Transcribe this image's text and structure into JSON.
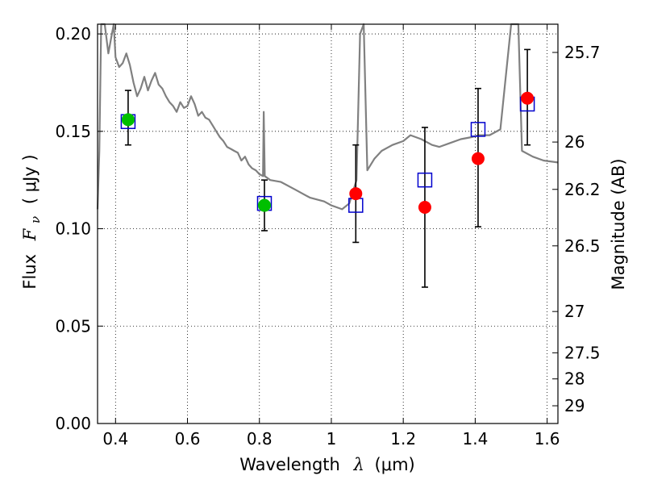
{
  "chart_data": {
    "type": "scatter",
    "xlabel": {
      "text": "Wavelength",
      "symbol": "λ",
      "unit": "(μm)"
    },
    "ylabel": {
      "text": "Flux",
      "symbol": "F",
      "subscript": "ν",
      "unit": "( μJy )"
    },
    "y2label": "Magnitude (AB)",
    "xlim": [
      0.35,
      1.63
    ],
    "ylim": [
      0.0,
      0.205
    ],
    "xticks": [
      0.4,
      0.6,
      0.8,
      1.0,
      1.2,
      1.4,
      1.6
    ],
    "xtick_labels": [
      "0.4",
      "0.6",
      "0.8",
      "1",
      "1.2",
      "1.4",
      "1.6"
    ],
    "yticks": [
      0.0,
      0.05,
      0.1,
      0.15,
      0.2
    ],
    "ytick_labels": [
      "0.00",
      "0.05",
      "0.10",
      "0.15",
      "0.20"
    ],
    "mag_ticks": [
      {
        "label": "25.7",
        "flux": 0.1905
      },
      {
        "label": "26",
        "flux": 0.1445
      },
      {
        "label": "26.2",
        "flux": 0.1202
      },
      {
        "label": "26.5",
        "flux": 0.0912
      },
      {
        "label": "27",
        "flux": 0.0575
      },
      {
        "label": "27.5",
        "flux": 0.0363
      },
      {
        "label": "28",
        "flux": 0.0229
      },
      {
        "label": "29",
        "flux": 0.0091
      }
    ],
    "grid": true,
    "colors": {
      "model": "#808080",
      "green": "#00bf00",
      "red": "#ff0000",
      "square": "#0000cd",
      "errorbar": "#000000"
    },
    "series": [
      {
        "values": [
          {
            "x": 0.435,
            "y": 0.156
          },
          {
            "x": 0.814,
            "y": 0.112
          }
        ]
      },
      {
        "values": [
          {
            "x": 1.068,
            "y": 0.118
          },
          {
            "x": 1.26,
            "y": 0.111
          },
          {
            "x": 1.408,
            "y": 0.136
          },
          {
            "x": 1.545,
            "y": 0.167
          }
        ]
      },
      {
        "values": [
          {
            "x": 0.435,
            "y": 0.155
          },
          {
            "x": 0.814,
            "y": 0.113
          },
          {
            "x": 1.068,
            "y": 0.112
          },
          {
            "x": 1.26,
            "y": 0.125
          },
          {
            "x": 1.408,
            "y": 0.151
          },
          {
            "x": 1.545,
            "y": 0.164
          }
        ]
      },
      {
        "values": [
          {
            "x": 0.435,
            "y": 0.157,
            "lo": 0.143,
            "hi": 0.171
          },
          {
            "x": 0.814,
            "y": 0.112,
            "lo": 0.099,
            "hi": 0.125
          },
          {
            "x": 1.068,
            "y": 0.118,
            "lo": 0.093,
            "hi": 0.143
          },
          {
            "x": 1.26,
            "y": 0.111,
            "lo": 0.07,
            "hi": 0.152
          },
          {
            "x": 1.408,
            "y": 0.137,
            "lo": 0.101,
            "hi": 0.172
          },
          {
            "x": 1.545,
            "y": 0.167,
            "lo": 0.143,
            "hi": 0.192
          }
        ]
      },
      {
        "values": [
          {
            "x": 0.35,
            "y": 0.11
          },
          {
            "x": 0.355,
            "y": 0.14
          },
          {
            "x": 0.36,
            "y": 0.205
          },
          {
            "x": 0.37,
            "y": 0.205
          },
          {
            "x": 0.38,
            "y": 0.19
          },
          {
            "x": 0.39,
            "y": 0.2
          },
          {
            "x": 0.395,
            "y": 0.205
          },
          {
            "x": 0.4,
            "y": 0.188
          },
          {
            "x": 0.41,
            "y": 0.183
          },
          {
            "x": 0.42,
            "y": 0.185
          },
          {
            "x": 0.43,
            "y": 0.19
          },
          {
            "x": 0.44,
            "y": 0.184
          },
          {
            "x": 0.45,
            "y": 0.175
          },
          {
            "x": 0.46,
            "y": 0.168
          },
          {
            "x": 0.47,
            "y": 0.172
          },
          {
            "x": 0.48,
            "y": 0.178
          },
          {
            "x": 0.49,
            "y": 0.171
          },
          {
            "x": 0.5,
            "y": 0.176
          },
          {
            "x": 0.51,
            "y": 0.18
          },
          {
            "x": 0.52,
            "y": 0.174
          },
          {
            "x": 0.53,
            "y": 0.172
          },
          {
            "x": 0.54,
            "y": 0.168
          },
          {
            "x": 0.55,
            "y": 0.165
          },
          {
            "x": 0.56,
            "y": 0.163
          },
          {
            "x": 0.57,
            "y": 0.16
          },
          {
            "x": 0.58,
            "y": 0.165
          },
          {
            "x": 0.59,
            "y": 0.162
          },
          {
            "x": 0.6,
            "y": 0.163
          },
          {
            "x": 0.61,
            "y": 0.168
          },
          {
            "x": 0.62,
            "y": 0.164
          },
          {
            "x": 0.63,
            "y": 0.158
          },
          {
            "x": 0.64,
            "y": 0.16
          },
          {
            "x": 0.65,
            "y": 0.157
          },
          {
            "x": 0.66,
            "y": 0.156
          },
          {
            "x": 0.67,
            "y": 0.153
          },
          {
            "x": 0.68,
            "y": 0.15
          },
          {
            "x": 0.69,
            "y": 0.147
          },
          {
            "x": 0.7,
            "y": 0.145
          },
          {
            "x": 0.71,
            "y": 0.142
          },
          {
            "x": 0.72,
            "y": 0.141
          },
          {
            "x": 0.73,
            "y": 0.14
          },
          {
            "x": 0.74,
            "y": 0.139
          },
          {
            "x": 0.75,
            "y": 0.135
          },
          {
            "x": 0.76,
            "y": 0.137
          },
          {
            "x": 0.77,
            "y": 0.133
          },
          {
            "x": 0.78,
            "y": 0.131
          },
          {
            "x": 0.79,
            "y": 0.13
          },
          {
            "x": 0.8,
            "y": 0.128
          },
          {
            "x": 0.81,
            "y": 0.127
          },
          {
            "x": 0.812,
            "y": 0.16
          },
          {
            "x": 0.815,
            "y": 0.127
          },
          {
            "x": 0.83,
            "y": 0.125
          },
          {
            "x": 0.86,
            "y": 0.124
          },
          {
            "x": 0.9,
            "y": 0.12
          },
          {
            "x": 0.94,
            "y": 0.116
          },
          {
            "x": 0.98,
            "y": 0.114
          },
          {
            "x": 1.0,
            "y": 0.112
          },
          {
            "x": 1.03,
            "y": 0.11
          },
          {
            "x": 1.05,
            "y": 0.113
          },
          {
            "x": 1.07,
            "y": 0.125
          },
          {
            "x": 1.08,
            "y": 0.2
          },
          {
            "x": 1.09,
            "y": 0.205
          },
          {
            "x": 1.1,
            "y": 0.13
          },
          {
            "x": 1.12,
            "y": 0.136
          },
          {
            "x": 1.14,
            "y": 0.14
          },
          {
            "x": 1.17,
            "y": 0.143
          },
          {
            "x": 1.2,
            "y": 0.145
          },
          {
            "x": 1.22,
            "y": 0.148
          },
          {
            "x": 1.25,
            "y": 0.146
          },
          {
            "x": 1.28,
            "y": 0.143
          },
          {
            "x": 1.3,
            "y": 0.142
          },
          {
            "x": 1.33,
            "y": 0.144
          },
          {
            "x": 1.36,
            "y": 0.146
          },
          {
            "x": 1.39,
            "y": 0.147
          },
          {
            "x": 1.41,
            "y": 0.148
          },
          {
            "x": 1.44,
            "y": 0.148
          },
          {
            "x": 1.47,
            "y": 0.151
          },
          {
            "x": 1.5,
            "y": 0.205
          },
          {
            "x": 1.52,
            "y": 0.205
          },
          {
            "x": 1.53,
            "y": 0.14
          },
          {
            "x": 1.56,
            "y": 0.137
          },
          {
            "x": 1.59,
            "y": 0.135
          },
          {
            "x": 1.63,
            "y": 0.134
          }
        ]
      }
    ]
  }
}
